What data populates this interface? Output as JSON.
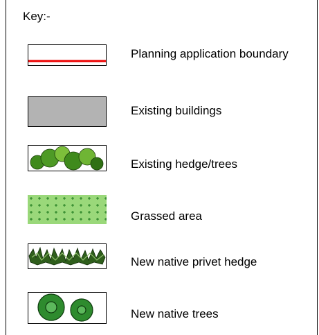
{
  "title": "Key:-",
  "items": [
    {
      "label": "Planning application boundary"
    },
    {
      "label": "Existing buildings"
    },
    {
      "label": "Existing hedge/trees"
    },
    {
      "label": "Grassed area"
    },
    {
      "label": "New native privet hedge"
    },
    {
      "label": "New native trees"
    }
  ]
}
